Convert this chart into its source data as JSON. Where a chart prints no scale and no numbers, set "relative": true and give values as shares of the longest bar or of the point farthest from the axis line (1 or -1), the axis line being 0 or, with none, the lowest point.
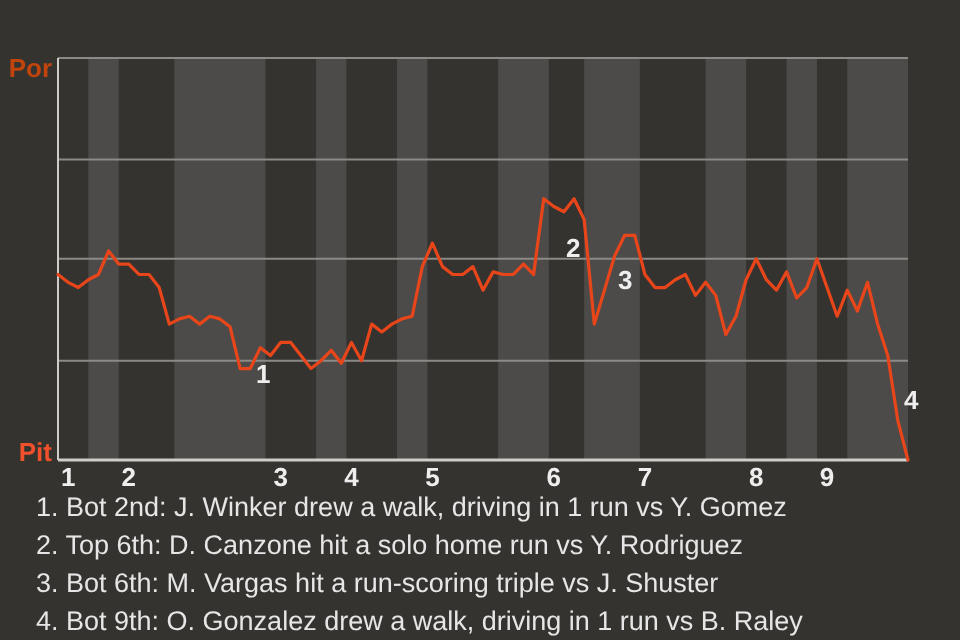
{
  "chart_data": {
    "type": "line",
    "relative": true,
    "categories": [
      null,
      "1",
      null,
      null,
      null,
      null,
      null,
      "2",
      null,
      null,
      null,
      null,
      null,
      null,
      null,
      null,
      null,
      null,
      null,
      null,
      null,
      null,
      "3",
      null,
      null,
      null,
      null,
      null,
      null,
      "4",
      null,
      null,
      null,
      null,
      null,
      null,
      null,
      "5",
      null,
      null,
      null,
      null,
      null,
      null,
      null,
      null,
      null,
      null,
      null,
      "6",
      null,
      null,
      null,
      null,
      null,
      null,
      null,
      null,
      "7",
      null,
      null,
      null,
      null,
      null,
      null,
      null,
      null,
      null,
      null,
      "8",
      null,
      null,
      null,
      null,
      null,
      null,
      "9",
      null,
      null,
      null,
      null,
      null,
      null,
      null,
      null
    ],
    "series": [
      {
        "color": "#e8461a",
        "values": [
          0.71,
          0.68,
          0.66,
          0.69,
          0.71,
          0.8,
          0.75,
          0.75,
          0.71,
          0.71,
          0.66,
          0.52,
          0.54,
          0.55,
          0.52,
          0.55,
          0.54,
          0.51,
          0.35,
          0.35,
          0.43,
          0.4,
          0.45,
          0.45,
          0.4,
          0.35,
          0.38,
          0.42,
          0.37,
          0.45,
          0.38,
          0.52,
          0.49,
          0.52,
          0.54,
          0.55,
          0.74,
          0.83,
          0.74,
          0.71,
          0.71,
          0.74,
          0.65,
          0.72,
          0.71,
          0.71,
          0.75,
          0.71,
          1,
          0.97,
          0.95,
          1,
          0.92,
          0.52,
          0.65,
          0.78,
          0.86,
          0.86,
          0.71,
          0.66,
          0.66,
          0.69,
          0.71,
          0.63,
          0.68,
          0.63,
          0.48,
          0.55,
          0.69,
          0.77,
          0.69,
          0.65,
          0.72,
          0.62,
          0.66,
          0.77,
          0.66,
          0.55,
          0.65,
          0.57,
          0.68,
          0.52,
          0.4,
          0.15,
          0
        ],
        "line_style": "solid"
      }
    ],
    "marker": "none",
    "ref_lines": [
      {
        "axis": "y",
        "value": 0.38,
        "color": "#8c8a87"
      },
      {
        "axis": "y",
        "value": 0.77,
        "color": "#8c8a87"
      },
      {
        "axis": "y",
        "value": 1.15,
        "color": "#8c8a87"
      }
    ],
    "annotations": [
      "Por",
      "Pit",
      "1",
      "2",
      "3",
      "4",
      "1. Bot 2nd: J. Winker drew a walk, driving in 1 run vs Y. Gomez",
      "2. Top 6th: D. Canzone hit a solo home run vs Y. Rodriguez",
      "3. Bot 6th: M. Vargas hit a run-scoring triple vs J. Shuster",
      "4. Bot 9th: O. Gonzalez drew a walk, driving in 1 run vs B. Raley"
    ]
  }
}
